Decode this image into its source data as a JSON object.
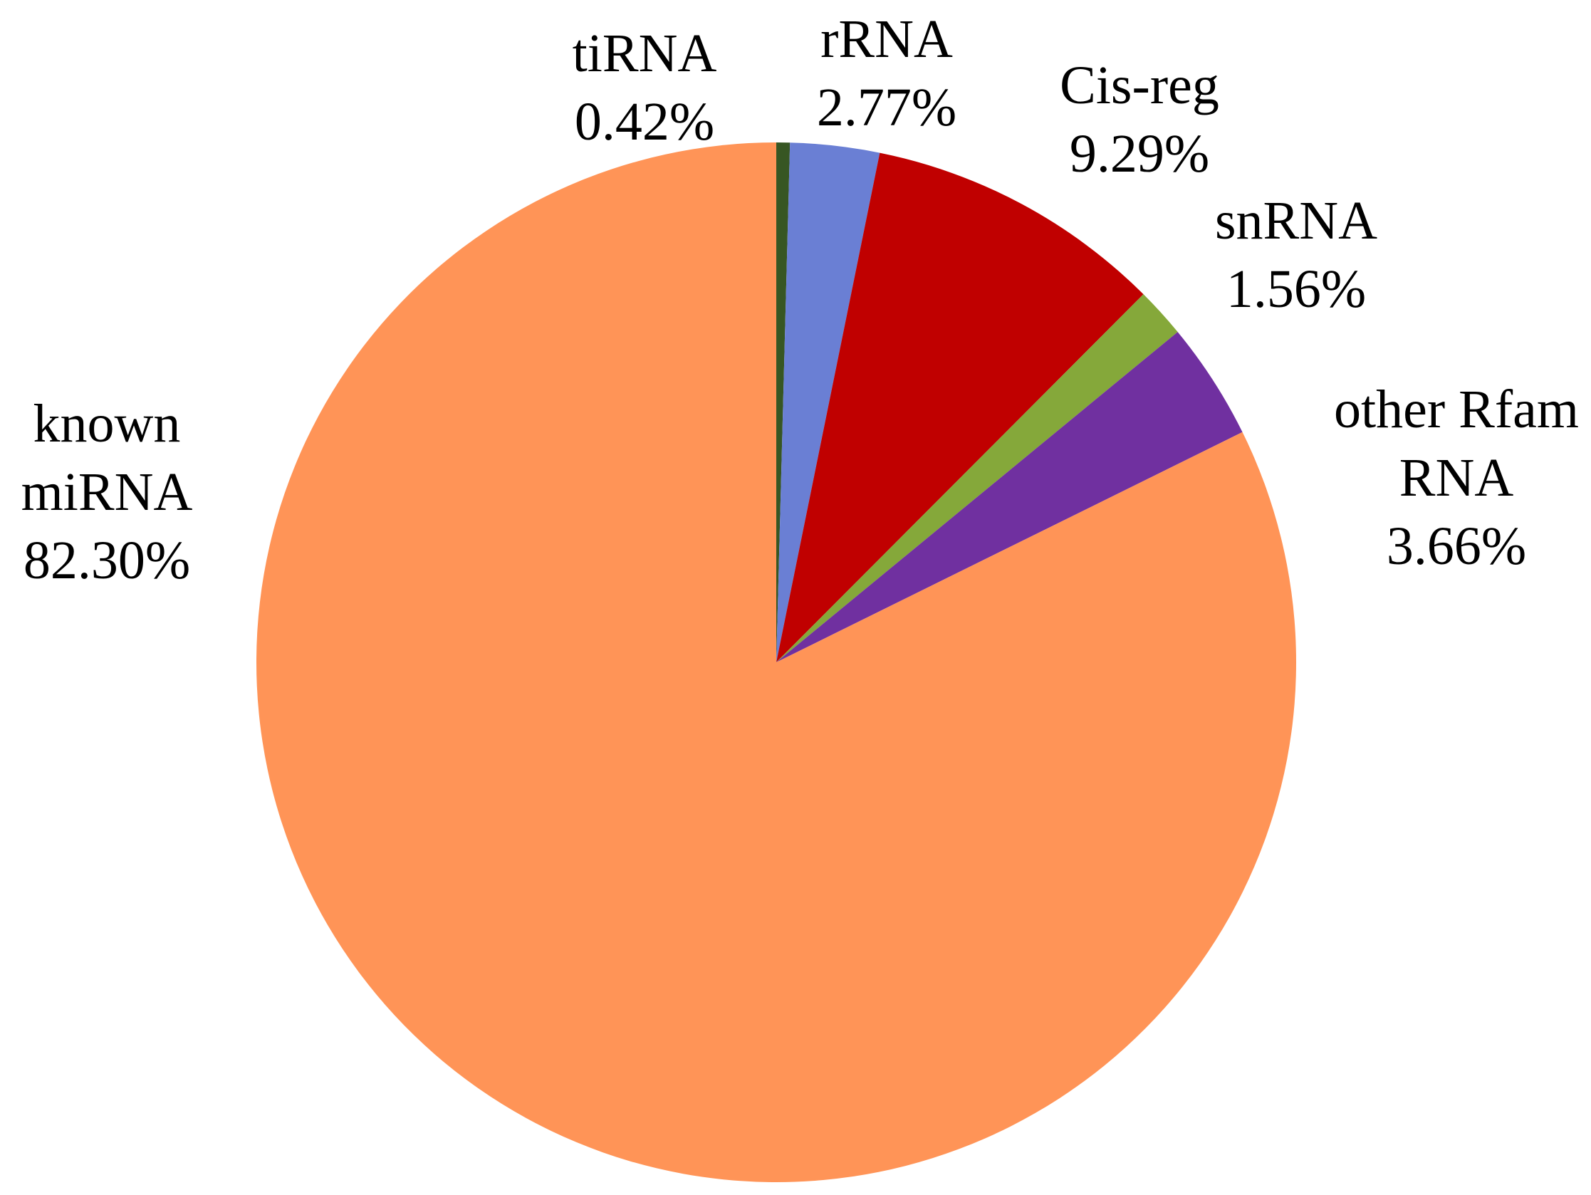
{
  "chart_data": {
    "type": "pie",
    "title": "",
    "slices": [
      {
        "name": "tiRNA",
        "value": 0.42,
        "value_label": "0.42%",
        "label_lines": [
          "tiRNA"
        ],
        "color": "#375623"
      },
      {
        "name": "rRNA",
        "value": 2.77,
        "value_label": "2.77%",
        "label_lines": [
          "rRNA"
        ],
        "color": "#6A7FD4"
      },
      {
        "name": "Cis-reg",
        "value": 9.29,
        "value_label": "9.29%",
        "label_lines": [
          "Cis-reg"
        ],
        "color": "#C00000"
      },
      {
        "name": "snRNA",
        "value": 1.56,
        "value_label": "1.56%",
        "label_lines": [
          "snRNA"
        ],
        "color": "#85A83A"
      },
      {
        "name": "other Rfam RNA",
        "value": 3.66,
        "value_label": "3.66%",
        "label_lines": [
          "other Rfam",
          "RNA"
        ],
        "color": "#7030A0"
      },
      {
        "name": "known miRNA",
        "value": 82.3,
        "value_label": "82.30%",
        "label_lines": [
          "known",
          "miRNA"
        ],
        "color": "#FF9457"
      }
    ],
    "start": "12 o'clock",
    "direction": "clockwise",
    "legend": "none"
  }
}
